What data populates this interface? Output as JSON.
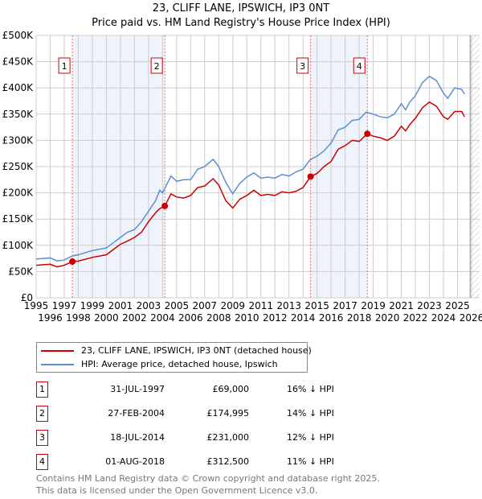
{
  "title": "23, CLIFF LANE, IPSWICH, IP3 0NT",
  "subtitle": "Price paid vs. HM Land Registry's House Price Index (HPI)",
  "chart_data": {
    "type": "line",
    "ylim": [
      0,
      500000
    ],
    "xlim": [
      1995,
      2026
    ],
    "yticks": [
      {
        "v": 0,
        "l": "£0"
      },
      {
        "v": 50000,
        "l": "£50K"
      },
      {
        "v": 100000,
        "l": "£100K"
      },
      {
        "v": 150000,
        "l": "£150K"
      },
      {
        "v": 200000,
        "l": "£200K"
      },
      {
        "v": 250000,
        "l": "£250K"
      },
      {
        "v": 300000,
        "l": "£300K"
      },
      {
        "v": 350000,
        "l": "£350K"
      },
      {
        "v": 400000,
        "l": "£400K"
      },
      {
        "v": 450000,
        "l": "£450K"
      },
      {
        "v": 500000,
        "l": "£500K"
      }
    ],
    "xticks": [
      "1995",
      "1996",
      "1997",
      "1998",
      "1999",
      "2000",
      "2001",
      "2002",
      "2003",
      "2004",
      "2005",
      "2006",
      "2007",
      "2008",
      "2009",
      "2010",
      "2011",
      "2012",
      "2013",
      "2014",
      "2015",
      "2016",
      "2017",
      "2018",
      "2019",
      "2020",
      "2021",
      "2022",
      "2023",
      "2024",
      "2025",
      "2026"
    ],
    "shaded": [
      [
        1997.58,
        2004.16
      ],
      [
        2014.54,
        2018.58
      ]
    ],
    "forecast_from": 2025.9,
    "series": [
      {
        "name": "23, CLIFF LANE, IPSWICH, IP3 0NT (detached house)",
        "color": "#cc0000",
        "x": [
          1995,
          1996,
          1996.5,
          1997,
          1997.58,
          1998,
          1999,
          2000,
          2000.5,
          2001,
          2001.5,
          2002,
          2002.5,
          2003,
          2003.5,
          2003.8,
          2004.16,
          2004.6,
          2005,
          2005.5,
          2006,
          2006.5,
          2007,
          2007.6,
          2008,
          2008.5,
          2009,
          2009.5,
          2010,
          2010.5,
          2011,
          2011.5,
          2012,
          2012.5,
          2013,
          2013.5,
          2014,
          2014.54,
          2015,
          2015.5,
          2016,
          2016.5,
          2017,
          2017.5,
          2018,
          2018.58,
          2019,
          2019.5,
          2020,
          2020.5,
          2021,
          2021.3,
          2021.6,
          2022,
          2022.5,
          2023,
          2023.5,
          2024,
          2024.3,
          2024.8,
          2025.3,
          2025.5
        ],
        "y": [
          62000,
          64000,
          59000,
          62000,
          69000,
          70000,
          77000,
          82000,
          92000,
          102000,
          108000,
          115000,
          125000,
          145000,
          162000,
          170000,
          174995,
          198000,
          192000,
          190000,
          195000,
          210000,
          213000,
          227000,
          215000,
          185000,
          171000,
          188000,
          195000,
          205000,
          195000,
          197000,
          195000,
          202000,
          200000,
          203000,
          210000,
          231000,
          237000,
          250000,
          260000,
          283000,
          290000,
          300000,
          298000,
          312500,
          308000,
          305000,
          300000,
          308000,
          327000,
          318000,
          330000,
          342000,
          362000,
          373000,
          365000,
          345000,
          340000,
          355000,
          355000,
          345000
        ]
      },
      {
        "name": "HPI: Average price, detached house, Ipswich",
        "color": "#5b8fd4",
        "x": [
          1995,
          1996,
          1996.5,
          1997,
          1997.6,
          1998,
          1999,
          2000,
          2000.5,
          2001,
          2001.5,
          2002,
          2002.5,
          2003,
          2003.5,
          2003.8,
          2004,
          2004.6,
          2005,
          2005.5,
          2006,
          2006.5,
          2007,
          2007.6,
          2008,
          2008.5,
          2009,
          2009.5,
          2010,
          2010.5,
          2011,
          2011.5,
          2012,
          2012.5,
          2013,
          2013.5,
          2014,
          2014.5,
          2015,
          2015.5,
          2016,
          2016.5,
          2017,
          2017.5,
          2018,
          2018.5,
          2019,
          2019.5,
          2020,
          2020.5,
          2021,
          2021.3,
          2021.6,
          2022,
          2022.5,
          2023,
          2023.5,
          2024,
          2024.3,
          2024.8,
          2025.3,
          2025.5
        ],
        "y": [
          74000,
          76000,
          70000,
          72000,
          80000,
          82000,
          90000,
          95000,
          105000,
          115000,
          125000,
          130000,
          145000,
          165000,
          185000,
          205000,
          200000,
          232000,
          222000,
          225000,
          225000,
          245000,
          250000,
          264000,
          250000,
          220000,
          198000,
          218000,
          230000,
          238000,
          228000,
          230000,
          228000,
          235000,
          232000,
          240000,
          245000,
          263000,
          270000,
          280000,
          295000,
          320000,
          325000,
          338000,
          340000,
          354000,
          350000,
          345000,
          343000,
          350000,
          370000,
          358000,
          373000,
          385000,
          410000,
          422000,
          414000,
          390000,
          380000,
          400000,
          397000,
          388000
        ]
      }
    ],
    "sales": [
      {
        "label": "1",
        "date": "31-JUL-1997",
        "x": 1997.58,
        "price": 69000,
        "price_text": "£69,000",
        "hpi": "16% ↓ HPI"
      },
      {
        "label": "2",
        "date": "27-FEB-2004",
        "x": 2004.16,
        "price": 174995,
        "price_text": "£174,995",
        "hpi": "14% ↓ HPI"
      },
      {
        "label": "3",
        "date": "18-JUL-2014",
        "x": 2014.54,
        "price": 231000,
        "price_text": "£231,000",
        "hpi": "12% ↓ HPI"
      },
      {
        "label": "4",
        "date": "01-AUG-2018",
        "x": 2018.58,
        "price": 312500,
        "price_text": "£312,500",
        "hpi": "11% ↓ HPI"
      }
    ]
  },
  "legend": {
    "red": "23, CLIFF LANE, IPSWICH, IP3 0NT (detached house)",
    "blue": "HPI: Average price, detached house, Ipswich"
  },
  "footer": {
    "line1": "Contains HM Land Registry data © Crown copyright and database right 2025.",
    "line2": "This data is licensed under the Open Government Licence v3.0."
  }
}
